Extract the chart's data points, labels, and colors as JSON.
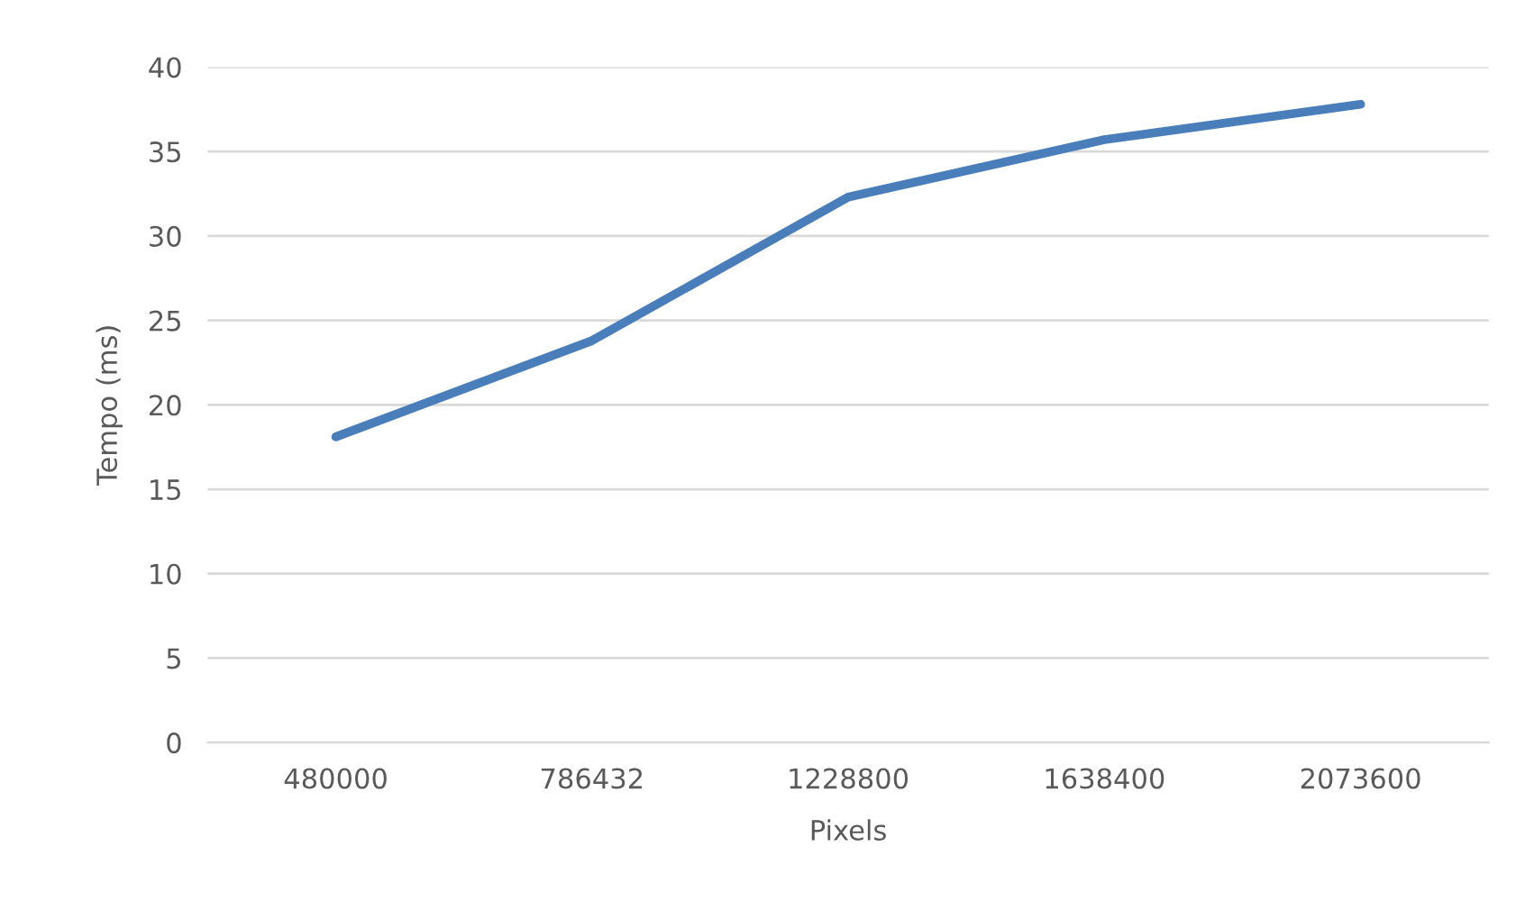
{
  "chart_data": {
    "type": "line",
    "xlabel": "Pixels",
    "ylabel": "Tempo (ms)",
    "categories": [
      "480000",
      "786432",
      "1228800",
      "1638400",
      "2073600"
    ],
    "series": [
      {
        "color": "#4a7ebb",
        "values": [
          18.1,
          23.8,
          32.3,
          35.7,
          37.8
        ]
      }
    ],
    "ylim": [
      0,
      40
    ],
    "yticks": [
      0,
      5,
      10,
      15,
      20,
      25,
      30,
      35,
      40
    ],
    "grid": "y",
    "legend": false,
    "marker": "none",
    "line_style": "solid"
  }
}
